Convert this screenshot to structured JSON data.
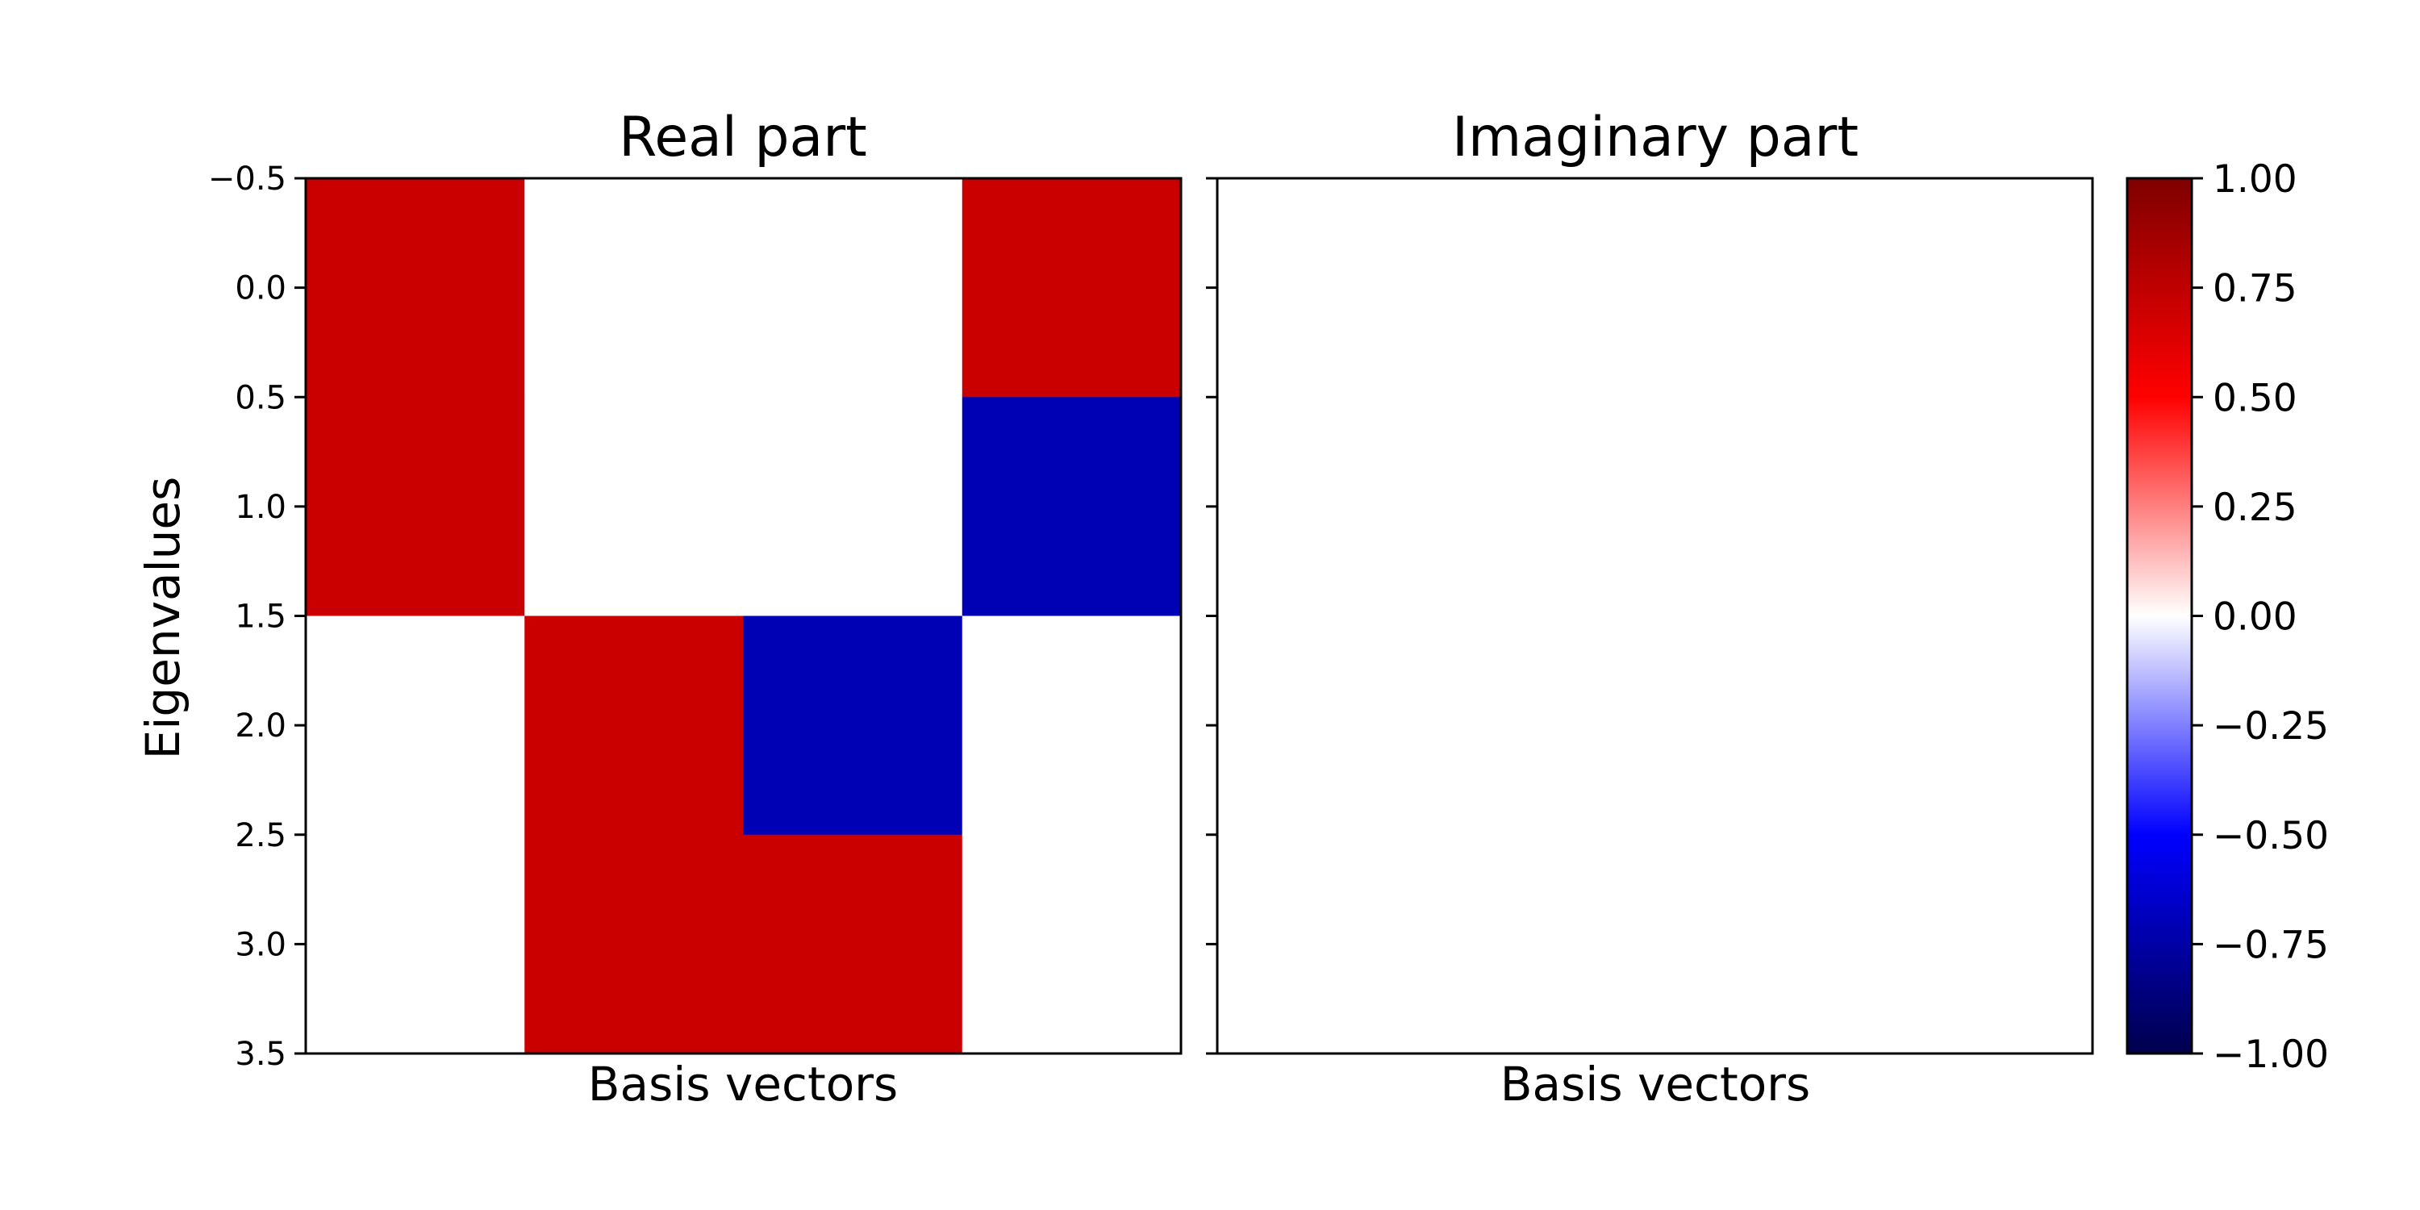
{
  "chart_data": [
    {
      "type": "heatmap",
      "title": "Real part",
      "xlabel": "Basis vectors",
      "ylabel": "Eigenvalues",
      "ylim": [
        3.5,
        -0.5
      ],
      "yticks": [
        -0.5,
        0.0,
        0.5,
        1.0,
        1.5,
        2.0,
        2.5,
        3.0,
        3.5
      ],
      "ytick_labels": [
        "−0.5",
        "0.0",
        "0.5",
        "1.0",
        "1.5",
        "2.0",
        "2.5",
        "3.0",
        "3.5"
      ],
      "show_xticks": false,
      "values": [
        [
          0.707,
          0,
          0,
          0.707
        ],
        [
          0.707,
          0,
          0,
          -0.707
        ],
        [
          0,
          0.707,
          -0.707,
          0
        ],
        [
          0,
          0.707,
          0.707,
          0
        ]
      ]
    },
    {
      "type": "heatmap",
      "title": "Imaginary part",
      "xlabel": "Basis vectors",
      "ylabel": "",
      "ylim": [
        3.5,
        -0.5
      ],
      "yticks": [
        -0.5,
        0.0,
        0.5,
        1.0,
        1.5,
        2.0,
        2.5,
        3.0,
        3.5
      ],
      "ytick_labels": [],
      "show_xticks": false,
      "values": [
        [
          0,
          0,
          0,
          0
        ],
        [
          0,
          0,
          0,
          0
        ],
        [
          0,
          0,
          0,
          0
        ],
        [
          0,
          0,
          0,
          0
        ]
      ]
    }
  ],
  "colorbar": {
    "colormap": "seismic",
    "vmin": -1.0,
    "vmax": 1.0,
    "ticks": [
      1.0,
      0.75,
      0.5,
      0.25,
      0.0,
      -0.25,
      -0.5,
      -0.75,
      -1.0
    ],
    "tick_labels": [
      "1.00",
      "0.75",
      "0.50",
      "0.25",
      "0.00",
      "−0.25",
      "−0.50",
      "−0.75",
      "−1.00"
    ],
    "colors": {
      "stops": [
        "#00004c",
        "#0000ff",
        "#ffffff",
        "#ff0000",
        "#7f0000"
      ]
    }
  }
}
